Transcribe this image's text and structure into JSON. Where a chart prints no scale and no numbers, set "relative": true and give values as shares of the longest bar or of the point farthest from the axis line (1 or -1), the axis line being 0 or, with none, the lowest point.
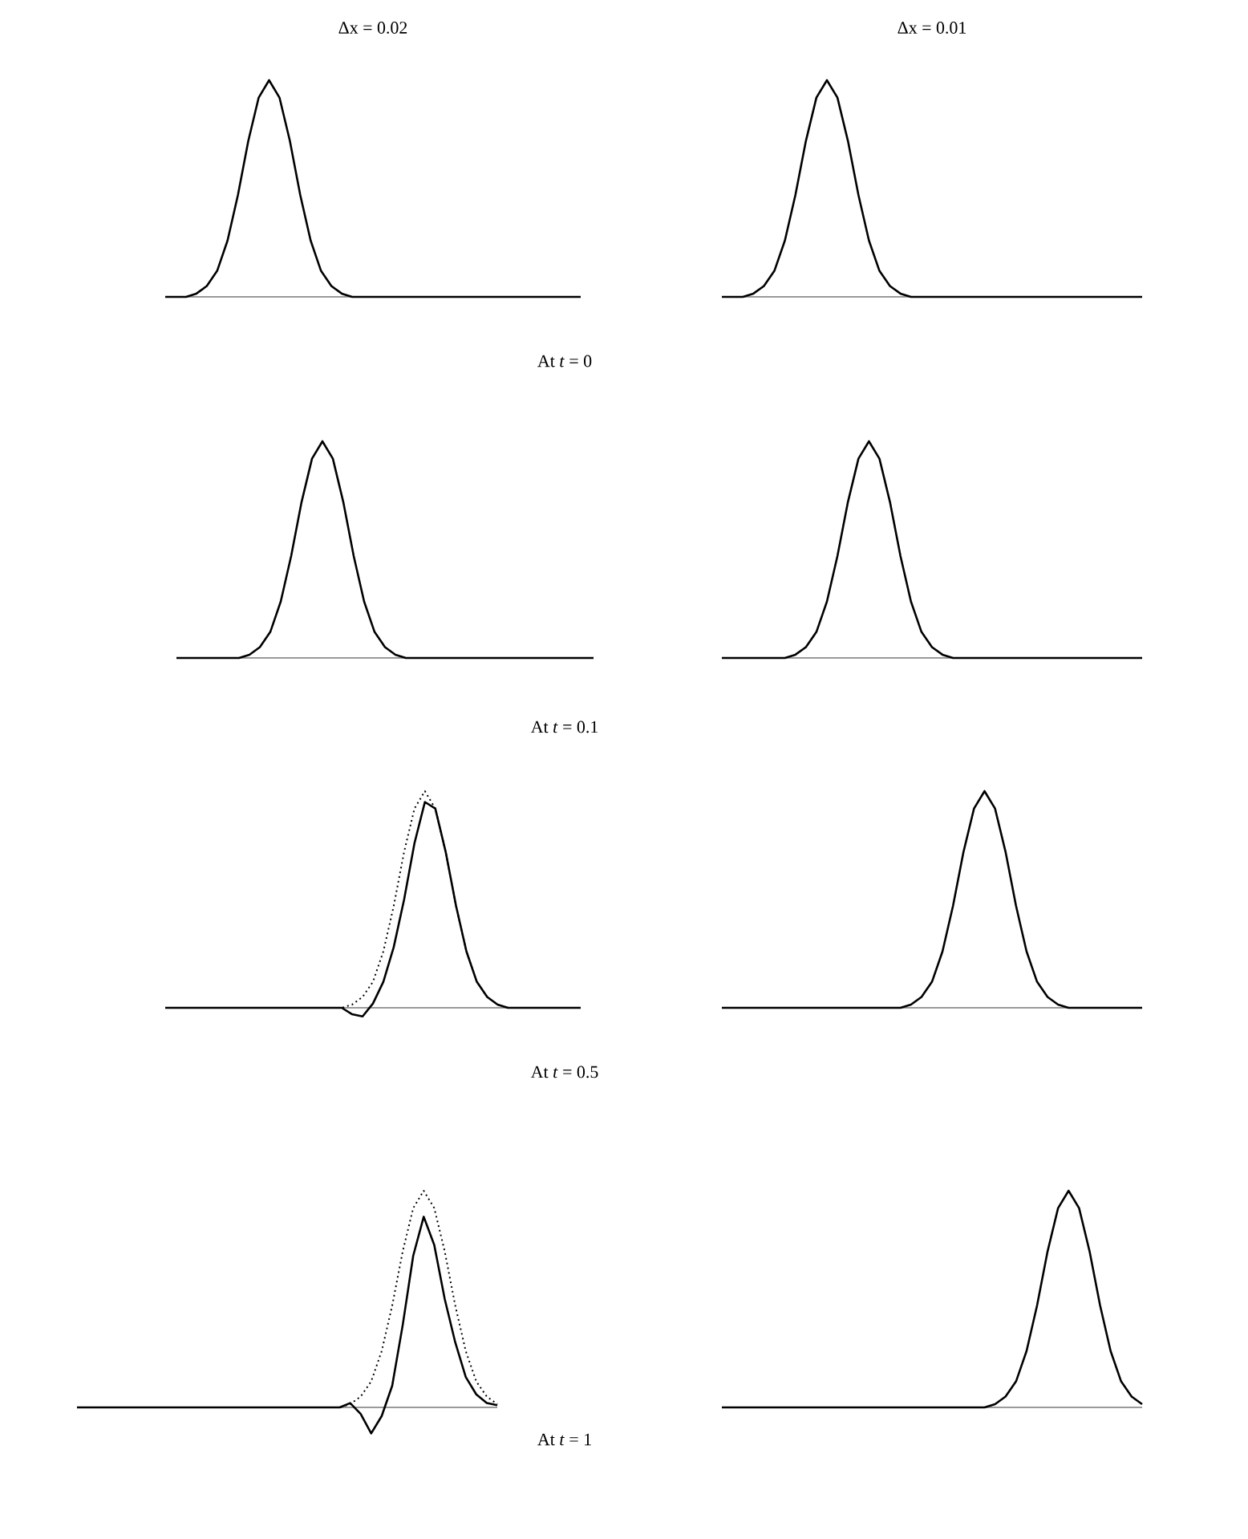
{
  "chart_data": [
    {
      "type": "line",
      "title": "Δx = 0.02",
      "relative": true,
      "categories": [
        null,
        null,
        null,
        null,
        null,
        null,
        null,
        null,
        null,
        null,
        null,
        null,
        null,
        null,
        null,
        null,
        null,
        null,
        null,
        null,
        null,
        null,
        null,
        null,
        null,
        null,
        null,
        null,
        null,
        null,
        null,
        null,
        null,
        null,
        null,
        null,
        null,
        null,
        null,
        null,
        null
      ],
      "series": [
        {
          "color": "#000000",
          "line_style": "solid",
          "values": [
            0,
            0,
            0,
            0.015,
            0.05,
            0.12,
            0.26,
            0.47,
            0.72,
            0.92,
            1,
            0.92,
            0.72,
            0.47,
            0.26,
            0.12,
            0.05,
            0.015,
            0,
            0,
            0,
            0,
            0,
            0,
            0,
            0,
            0,
            0,
            0,
            0,
            0,
            0,
            0,
            0,
            0,
            0,
            0,
            0,
            0,
            0,
            0
          ]
        }
      ]
    },
    {
      "type": "line",
      "title": "Δx = 0.01",
      "relative": true,
      "annotations": [
        "At *t* = 0"
      ],
      "categories": [
        null,
        null,
        null,
        null,
        null,
        null,
        null,
        null,
        null,
        null,
        null,
        null,
        null,
        null,
        null,
        null,
        null,
        null,
        null,
        null,
        null,
        null,
        null,
        null,
        null,
        null,
        null,
        null,
        null,
        null,
        null,
        null,
        null,
        null,
        null,
        null,
        null,
        null,
        null,
        null,
        null
      ],
      "series": [
        {
          "color": "#000000",
          "line_style": "solid",
          "values": [
            0,
            0,
            0,
            0.015,
            0.05,
            0.12,
            0.26,
            0.47,
            0.72,
            0.92,
            1,
            0.92,
            0.72,
            0.47,
            0.26,
            0.12,
            0.05,
            0.015,
            0,
            0,
            0,
            0,
            0,
            0,
            0,
            0,
            0,
            0,
            0,
            0,
            0,
            0,
            0,
            0,
            0,
            0,
            0,
            0,
            0,
            0,
            0
          ]
        }
      ]
    },
    {
      "type": "line",
      "relative": true,
      "categories": [
        null,
        null,
        null,
        null,
        null,
        null,
        null,
        null,
        null,
        null,
        null,
        null,
        null,
        null,
        null,
        null,
        null,
        null,
        null,
        null,
        null,
        null,
        null,
        null,
        null,
        null,
        null,
        null,
        null,
        null,
        null,
        null,
        null,
        null,
        null,
        null,
        null,
        null,
        null,
        null,
        null
      ],
      "series": [
        {
          "color": "#000000",
          "line_style": "solid",
          "values": [
            0,
            0,
            0,
            0,
            0,
            0,
            0,
            0.015,
            0.05,
            0.12,
            0.26,
            0.47,
            0.72,
            0.92,
            1,
            0.92,
            0.72,
            0.47,
            0.26,
            0.12,
            0.05,
            0.015,
            0,
            0,
            0,
            0,
            0,
            0,
            0,
            0,
            0,
            0,
            0,
            0,
            0,
            0,
            0,
            0,
            0,
            0,
            0
          ]
        }
      ]
    },
    {
      "type": "line",
      "relative": true,
      "annotations": [
        "At *t* = 0.1"
      ],
      "categories": [
        null,
        null,
        null,
        null,
        null,
        null,
        null,
        null,
        null,
        null,
        null,
        null,
        null,
        null,
        null,
        null,
        null,
        null,
        null,
        null,
        null,
        null,
        null,
        null,
        null,
        null,
        null,
        null,
        null,
        null,
        null,
        null,
        null,
        null,
        null,
        null,
        null,
        null,
        null,
        null,
        null
      ],
      "series": [
        {
          "color": "#000000",
          "line_style": "solid",
          "values": [
            0,
            0,
            0,
            0,
            0,
            0,
            0,
            0.015,
            0.05,
            0.12,
            0.26,
            0.47,
            0.72,
            0.92,
            1,
            0.92,
            0.72,
            0.47,
            0.26,
            0.12,
            0.05,
            0.015,
            0,
            0,
            0,
            0,
            0,
            0,
            0,
            0,
            0,
            0,
            0,
            0,
            0,
            0,
            0,
            0,
            0,
            0,
            0
          ]
        }
      ]
    },
    {
      "type": "line",
      "relative": true,
      "categories": [
        null,
        null,
        null,
        null,
        null,
        null,
        null,
        null,
        null,
        null,
        null,
        null,
        null,
        null,
        null,
        null,
        null,
        null,
        null,
        null,
        null,
        null,
        null,
        null,
        null,
        null,
        null,
        null,
        null,
        null,
        null,
        null,
        null,
        null,
        null,
        null,
        null,
        null,
        null,
        null,
        null
      ],
      "series": [
        {
          "color": "#000000",
          "line_style": "dotted",
          "values": [
            0,
            0,
            0,
            0,
            0,
            0,
            0,
            0,
            0,
            0,
            0,
            0,
            0,
            0,
            0,
            0,
            0,
            0,
            0.015,
            0.05,
            0.12,
            0.26,
            0.47,
            0.72,
            0.92,
            1,
            0.92,
            0.72,
            0.47,
            0.26,
            0.12,
            0.05,
            0.015,
            0,
            0,
            0,
            0,
            0,
            0,
            0,
            0
          ]
        },
        {
          "color": "#000000",
          "line_style": "solid",
          "values": [
            0,
            0,
            0,
            0,
            0,
            0,
            0,
            0,
            0,
            0,
            0,
            0,
            0,
            0,
            0,
            0,
            0,
            0,
            -0.03,
            -0.04,
            0.02,
            0.12,
            0.28,
            0.5,
            0.76,
            0.95,
            0.92,
            0.72,
            0.47,
            0.26,
            0.12,
            0.05,
            0.015,
            0,
            0,
            0,
            0,
            0,
            0,
            0,
            0
          ]
        }
      ]
    },
    {
      "type": "line",
      "relative": true,
      "annotations": [
        "At *t* = 0.5"
      ],
      "categories": [
        null,
        null,
        null,
        null,
        null,
        null,
        null,
        null,
        null,
        null,
        null,
        null,
        null,
        null,
        null,
        null,
        null,
        null,
        null,
        null,
        null,
        null,
        null,
        null,
        null,
        null,
        null,
        null,
        null,
        null,
        null,
        null,
        null,
        null,
        null,
        null,
        null,
        null,
        null,
        null,
        null
      ],
      "series": [
        {
          "color": "#000000",
          "line_style": "solid",
          "values": [
            0,
            0,
            0,
            0,
            0,
            0,
            0,
            0,
            0,
            0,
            0,
            0,
            0,
            0,
            0,
            0,
            0,
            0,
            0.015,
            0.05,
            0.12,
            0.26,
            0.47,
            0.72,
            0.92,
            1,
            0.92,
            0.72,
            0.47,
            0.26,
            0.12,
            0.05,
            0.015,
            0,
            0,
            0,
            0,
            0,
            0,
            0,
            0
          ]
        }
      ]
    },
    {
      "type": "line",
      "relative": true,
      "categories": [
        null,
        null,
        null,
        null,
        null,
        null,
        null,
        null,
        null,
        null,
        null,
        null,
        null,
        null,
        null,
        null,
        null,
        null,
        null,
        null,
        null,
        null,
        null,
        null,
        null,
        null,
        null,
        null,
        null,
        null,
        null,
        null,
        null,
        null,
        null,
        null,
        null,
        null,
        null,
        null,
        null
      ],
      "series": [
        {
          "color": "#000000",
          "line_style": "dotted",
          "values": [
            0,
            0,
            0,
            0,
            0,
            0,
            0,
            0,
            0,
            0,
            0,
            0,
            0,
            0,
            0,
            0,
            0,
            0,
            0,
            0,
            0,
            0,
            0,
            0,
            0,
            0,
            0.015,
            0.05,
            0.12,
            0.26,
            0.47,
            0.72,
            0.92,
            1,
            0.92,
            0.72,
            0.47,
            0.26,
            0.12,
            0.05,
            0.015
          ]
        },
        {
          "color": "#000000",
          "line_style": "solid",
          "values": [
            0,
            0,
            0,
            0,
            0,
            0,
            0,
            0,
            0,
            0,
            0,
            0,
            0,
            0,
            0,
            0,
            0,
            0,
            0,
            0,
            0,
            0,
            0,
            0,
            0,
            0,
            0.02,
            -0.03,
            -0.12,
            -0.04,
            0.1,
            0.38,
            0.7,
            0.88,
            0.75,
            0.5,
            0.3,
            0.14,
            0.06,
            0.02,
            0.01
          ]
        }
      ]
    },
    {
      "type": "line",
      "relative": true,
      "annotations": [
        "At *t* = 1"
      ],
      "categories": [
        null,
        null,
        null,
        null,
        null,
        null,
        null,
        null,
        null,
        null,
        null,
        null,
        null,
        null,
        null,
        null,
        null,
        null,
        null,
        null,
        null,
        null,
        null,
        null,
        null,
        null,
        null,
        null,
        null,
        null,
        null,
        null,
        null,
        null,
        null,
        null,
        null,
        null,
        null,
        null,
        null
      ],
      "series": [
        {
          "color": "#000000",
          "line_style": "solid",
          "values": [
            0,
            0,
            0,
            0,
            0,
            0,
            0,
            0,
            0,
            0,
            0,
            0,
            0,
            0,
            0,
            0,
            0,
            0,
            0,
            0,
            0,
            0,
            0,
            0,
            0,
            0,
            0.015,
            0.05,
            0.12,
            0.26,
            0.47,
            0.72,
            0.92,
            1,
            0.92,
            0.72,
            0.47,
            0.26,
            0.12,
            0.05,
            0.015
          ]
        }
      ]
    }
  ]
}
